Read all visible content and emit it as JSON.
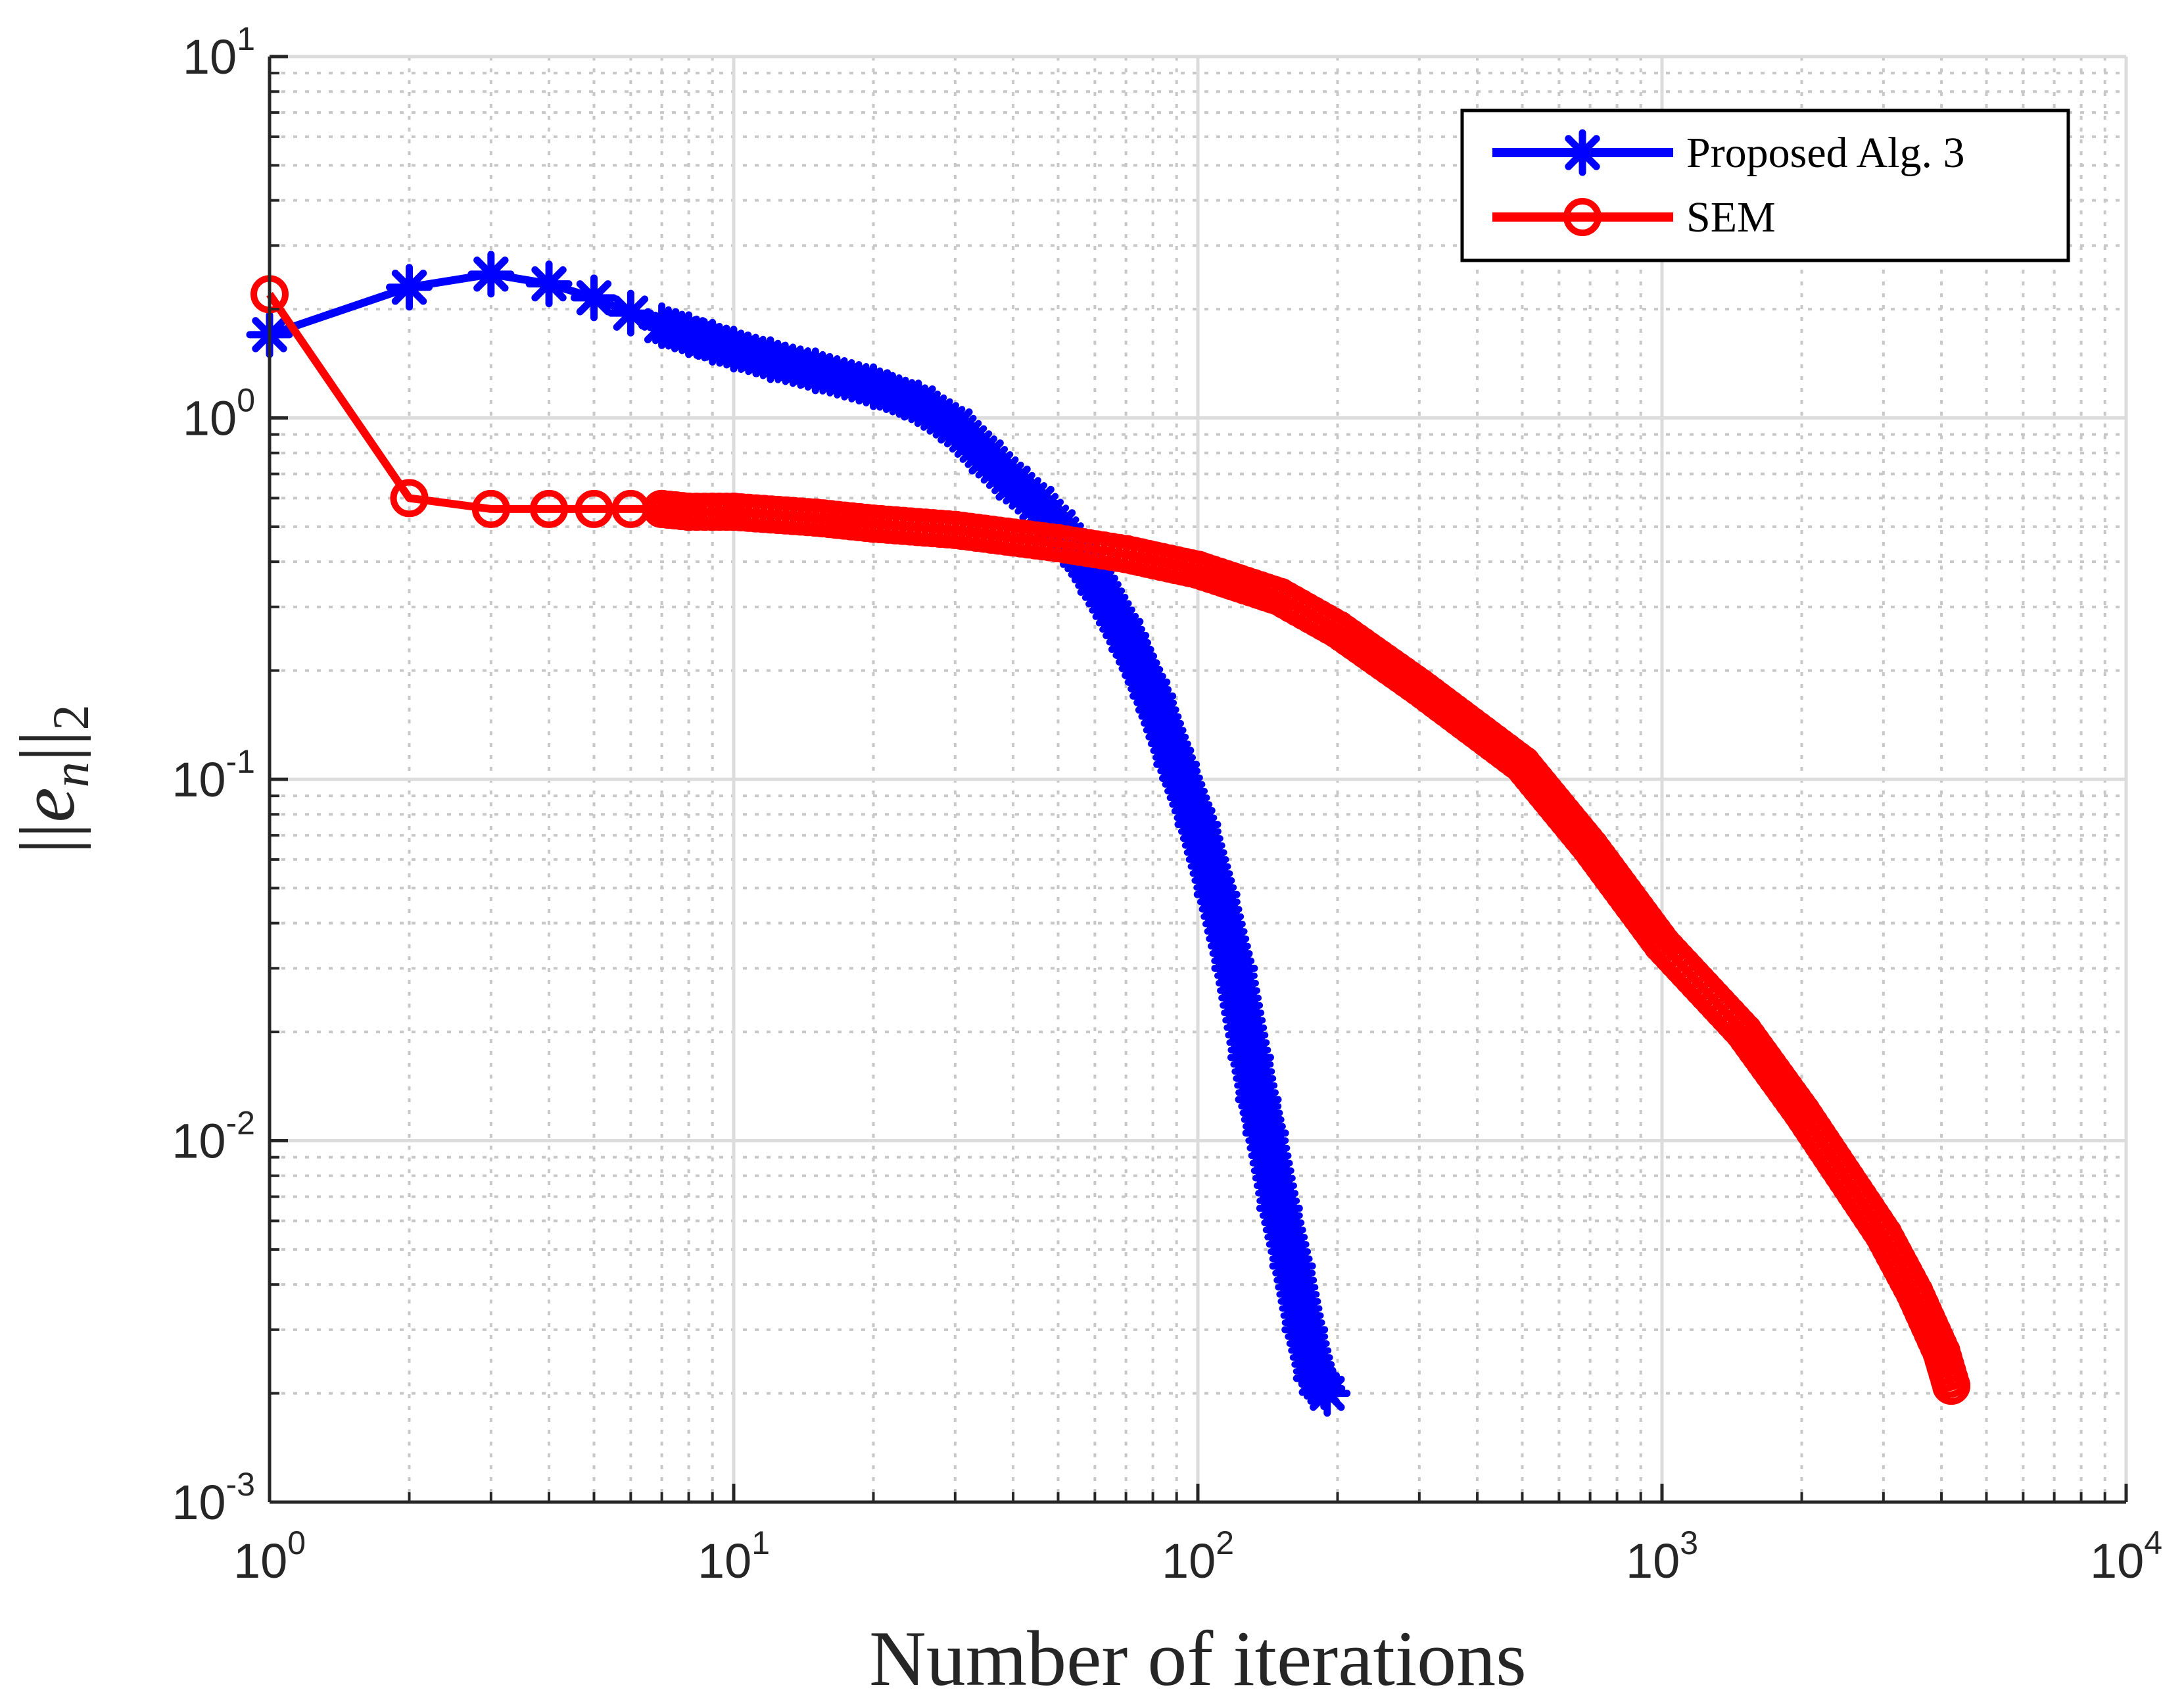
{
  "chart_data": {
    "type": "line",
    "title": "",
    "xlabel": "Number of iterations",
    "ylabel": "||e_n||_2",
    "ylabel_parts": {
      "bars_left": "||",
      "var": "e",
      "sub": "n",
      "bars_right": "||",
      "sub2": "2"
    },
    "xscale": "log",
    "yscale": "log",
    "xlim": [
      1,
      10000
    ],
    "ylim": [
      0.001,
      10
    ],
    "grid": true,
    "legend_position": "top-right",
    "xticks": [
      {
        "base": "10",
        "exp": "0"
      },
      {
        "base": "10",
        "exp": "1"
      },
      {
        "base": "10",
        "exp": "2"
      },
      {
        "base": "10",
        "exp": "3"
      },
      {
        "base": "10",
        "exp": "4"
      }
    ],
    "yticks": [
      {
        "base": "10",
        "exp": "-3"
      },
      {
        "base": "10",
        "exp": "-2"
      },
      {
        "base": "10",
        "exp": "-1"
      },
      {
        "base": "10",
        "exp": "0"
      },
      {
        "base": "10",
        "exp": "1"
      }
    ],
    "series": [
      {
        "name": "Proposed Alg. 3",
        "color": "#0000ff",
        "marker": "asterisk",
        "x": [
          1,
          2,
          3,
          4,
          5,
          6,
          7,
          8,
          9,
          10,
          12,
          15,
          20,
          25,
          30,
          35,
          40,
          45,
          50,
          55,
          60,
          70,
          80,
          90,
          100,
          110,
          120,
          130,
          135,
          140,
          150,
          160,
          170,
          180,
          190
        ],
        "y": [
          1.7,
          2.3,
          2.5,
          2.35,
          2.15,
          1.95,
          1.8,
          1.7,
          1.62,
          1.55,
          1.45,
          1.35,
          1.22,
          1.1,
          0.95,
          0.78,
          0.66,
          0.58,
          0.5,
          0.43,
          0.36,
          0.25,
          0.17,
          0.11,
          0.075,
          0.048,
          0.03,
          0.017,
          0.013,
          0.0105,
          0.0065,
          0.0045,
          0.003,
          0.0022,
          0.002
        ]
      },
      {
        "name": "SEM",
        "color": "#ff0000",
        "marker": "circle",
        "x": [
          1,
          2,
          3,
          4,
          5,
          6,
          7,
          8,
          9,
          10,
          15,
          20,
          30,
          50,
          70,
          100,
          150,
          200,
          300,
          500,
          700,
          1000,
          1500,
          2000,
          3000,
          3500,
          4000,
          4200
        ],
        "y": [
          2.2,
          0.6,
          0.56,
          0.56,
          0.56,
          0.56,
          0.56,
          0.55,
          0.55,
          0.55,
          0.53,
          0.51,
          0.49,
          0.45,
          0.42,
          0.38,
          0.32,
          0.26,
          0.18,
          0.11,
          0.065,
          0.035,
          0.02,
          0.012,
          0.0055,
          0.0038,
          0.0026,
          0.0021
        ]
      }
    ]
  }
}
